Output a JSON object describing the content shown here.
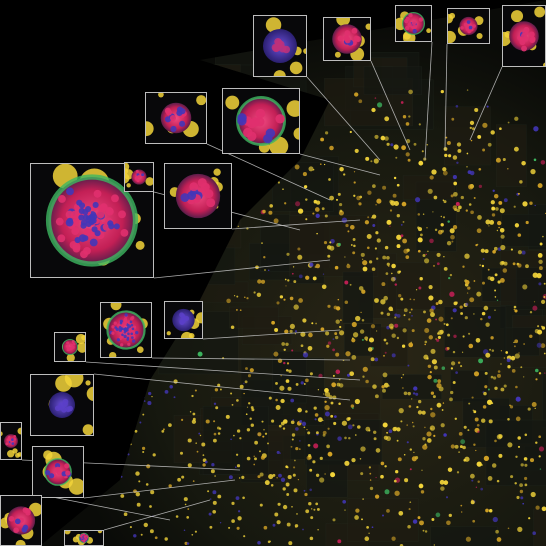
{
  "image": {
    "subject": "",
    "colors": {
      "background": "#000000",
      "tissue_dark": "#1d2018",
      "tile_edge": "#2d3a30",
      "yellow_cell": "#f2d43a",
      "gold_cell": "#d7a626",
      "magenta_nuclei": "#e0306e",
      "red_cluster": "#c21f55",
      "blue_stain": "#4236b8",
      "green_stain": "#3db860",
      "callout_frame": "#bdbdbd",
      "leader_line": "#c8c8c8"
    },
    "callouts": [
      {
        "name": "callout-organoid-1",
        "style": "large-mixed",
        "fill": 0.9
      },
      {
        "name": "callout-organoid-2",
        "style": "clustered-red",
        "fill": 0.8
      },
      {
        "name": "callout-organoid-3",
        "style": "clustered-red",
        "fill": 0.7
      },
      {
        "name": "callout-organoid-4",
        "style": "ring-green",
        "fill": 0.85
      },
      {
        "name": "callout-organoid-5",
        "style": "purple-blobs",
        "fill": 0.75
      },
      {
        "name": "callout-organoid-6",
        "style": "clustered-red",
        "fill": 0.8
      },
      {
        "name": "callout-organoid-7",
        "style": "ring-green",
        "fill": 0.7
      },
      {
        "name": "callout-organoid-8",
        "style": "clustered-red",
        "fill": 0.6
      },
      {
        "name": "callout-organoid-9",
        "style": "clustered-red",
        "fill": 0.8
      },
      {
        "name": "callout-organoid-10",
        "style": "large-mixed",
        "fill": 0.85
      },
      {
        "name": "callout-organoid-11",
        "style": "blue-cluster",
        "fill": 0.7
      },
      {
        "name": "callout-organoid-12",
        "style": "ring-green",
        "fill": 0.6
      },
      {
        "name": "callout-organoid-13",
        "style": "blue-cluster",
        "fill": 0.5
      },
      {
        "name": "callout-organoid-14",
        "style": "clustered-red",
        "fill": 0.75
      },
      {
        "name": "callout-organoid-15",
        "style": "ring-green",
        "fill": 0.6
      },
      {
        "name": "callout-organoid-16",
        "style": "clustered-red",
        "fill": 0.8
      },
      {
        "name": "callout-organoid-17",
        "style": "large-mixed",
        "fill": 0.7
      },
      {
        "name": "callout-organoid-18",
        "style": "clustered-red",
        "fill": 0.6
      }
    ]
  }
}
